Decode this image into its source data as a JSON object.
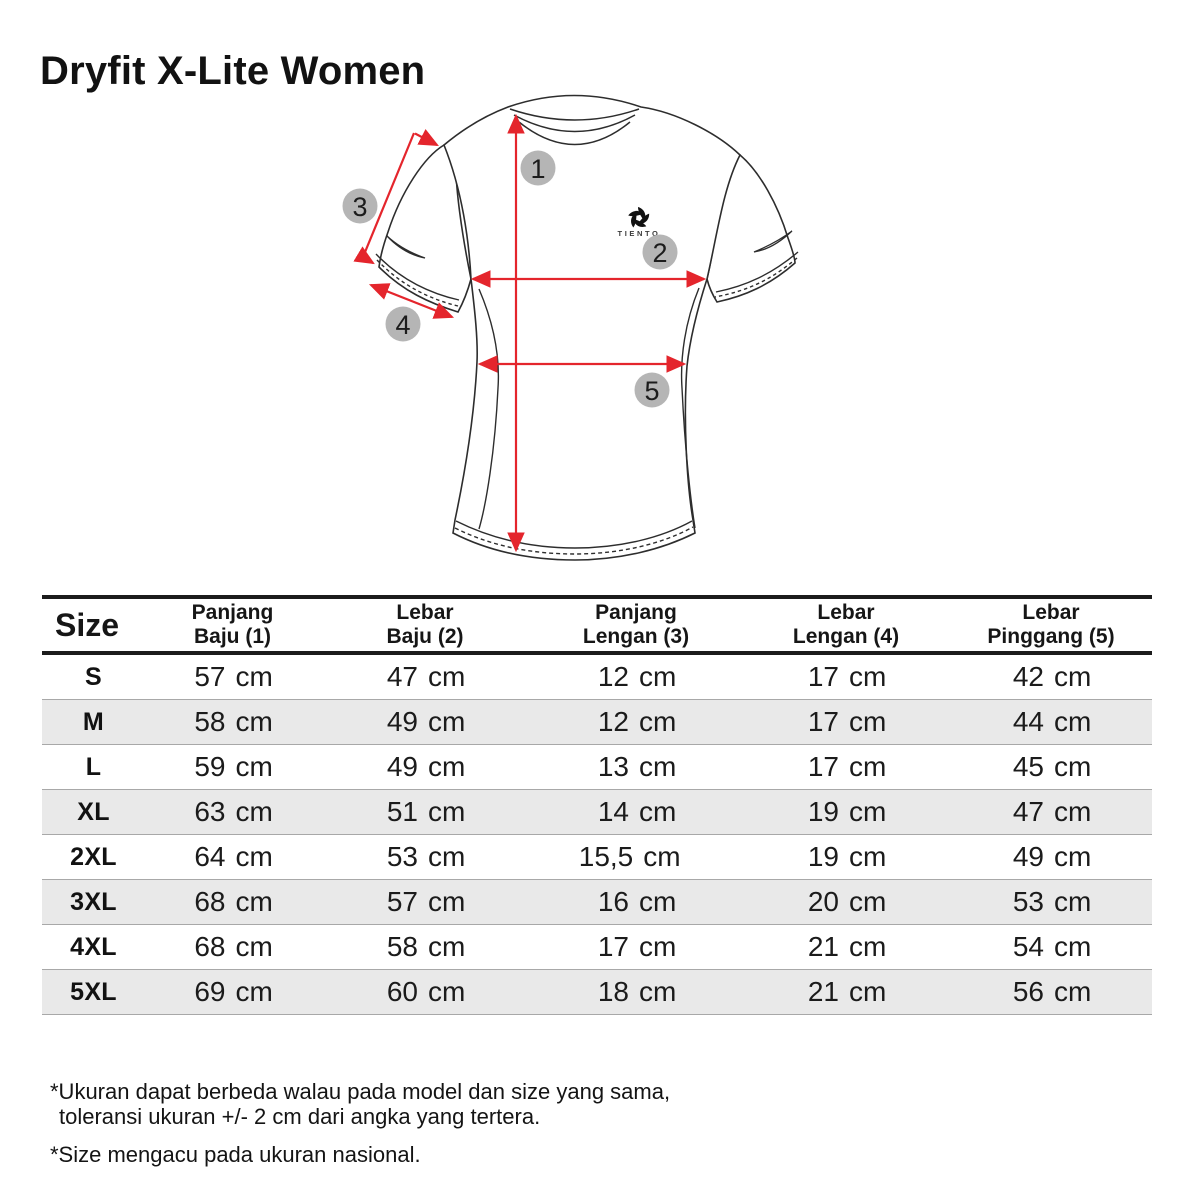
{
  "title": "Dryfit X-Lite Women",
  "brand": {
    "logo_text": "TIENTO"
  },
  "diagram": {
    "marker_labels": [
      "1",
      "2",
      "3",
      "4",
      "5"
    ],
    "arrow_color": "#e4252c",
    "badge_color": "#b5b5b5"
  },
  "size_chart": {
    "size_header": "Size",
    "unit": "cm",
    "stripe_color": "#e9e9e9",
    "columns": [
      {
        "line1": "Panjang",
        "line2": "Baju (1)"
      },
      {
        "line1": "Lebar",
        "line2": "Baju (2)"
      },
      {
        "line1": "Panjang",
        "line2": "Lengan (3)"
      },
      {
        "line1": "Lebar",
        "line2": "Lengan (4)"
      },
      {
        "line1": "Lebar",
        "line2": "Pinggang (5)"
      }
    ],
    "rows": [
      {
        "size": "S",
        "values": [
          "57",
          "47",
          "12",
          "17",
          "42"
        ]
      },
      {
        "size": "M",
        "values": [
          "58",
          "49",
          "12",
          "17",
          "44"
        ]
      },
      {
        "size": "L",
        "values": [
          "59",
          "49",
          "13",
          "17",
          "45"
        ]
      },
      {
        "size": "XL",
        "values": [
          "63",
          "51",
          "14",
          "19",
          "47"
        ]
      },
      {
        "size": "2XL",
        "values": [
          "64",
          "53",
          "15,5",
          "19",
          "49"
        ]
      },
      {
        "size": "3XL",
        "values": [
          "68",
          "57",
          "16",
          "20",
          "53"
        ]
      },
      {
        "size": "4XL",
        "values": [
          "68",
          "58",
          "17",
          "21",
          "54"
        ]
      },
      {
        "size": "5XL",
        "values": [
          "69",
          "60",
          "18",
          "21",
          "56"
        ]
      }
    ]
  },
  "notes": {
    "note1_line1": "*Ukuran dapat berbeda walau pada model dan size yang sama,",
    "note1_line2": "toleransi ukuran +/- 2 cm dari angka yang tertera.",
    "note2": "*Size mengacu pada ukuran nasional."
  }
}
